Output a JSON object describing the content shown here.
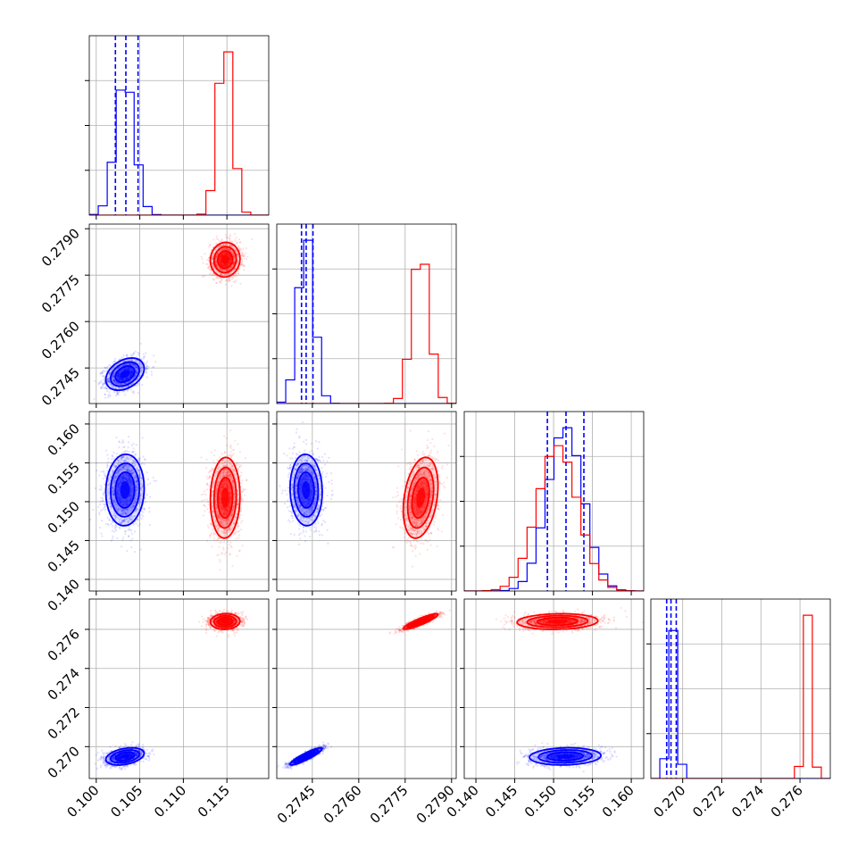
{
  "chart_data": {
    "type": "corner",
    "title": "",
    "grid": true,
    "params": [
      {
        "ticks": [
          "0.100",
          "0.105",
          "0.110",
          "0.115"
        ],
        "range": [
          0.0992,
          0.1198
        ]
      },
      {
        "ticks": [
          "0.2745",
          "0.2760",
          "0.2775",
          "0.2790"
        ],
        "range": [
          0.27335,
          0.27915
        ]
      },
      {
        "ticks": [
          "0.140",
          "0.145",
          "0.150",
          "0.155",
          "0.160"
        ],
        "range": [
          0.1385,
          0.1616
        ]
      },
      {
        "ticks": [
          "0.270",
          "0.272",
          "0.274",
          "0.276"
        ],
        "range": [
          0.26837,
          0.27755
        ]
      }
    ],
    "series": [
      {
        "color": "#0000ff",
        "mean": [
          0.1033,
          0.2743,
          0.1515,
          0.2695
        ],
        "sd": [
          0.0011,
          0.00026,
          0.0023,
          0.00022
        ],
        "corr": [
          [
            0,
            1,
            0.35
          ],
          [
            0,
            2,
            0.05
          ],
          [
            0,
            3,
            0.35
          ],
          [
            1,
            2,
            -0.05
          ],
          [
            1,
            3,
            0.9
          ],
          [
            2,
            3,
            0.1
          ]
        ],
        "quantiles": [
          [
            0.1022,
            0.1034,
            0.1048
          ],
          [
            0.27415,
            0.2743,
            0.27452
          ],
          [
            0.1492,
            0.1516,
            0.1539
          ],
          [
            0.26918,
            0.2694,
            0.26967
          ]
        ]
      },
      {
        "color": "#ff0000",
        "mean": [
          0.1148,
          0.278,
          0.1505,
          0.2764
        ],
        "sd": [
          0.00085,
          0.00028,
          0.0026,
          0.0002
        ],
        "corr": [
          [
            0,
            1,
            0.05
          ],
          [
            0,
            2,
            0.05
          ],
          [
            0,
            3,
            0.05
          ],
          [
            1,
            2,
            0.3
          ],
          [
            1,
            3,
            0.9
          ],
          [
            2,
            3,
            0.1
          ]
        ],
        "quantiles": []
      }
    ]
  }
}
